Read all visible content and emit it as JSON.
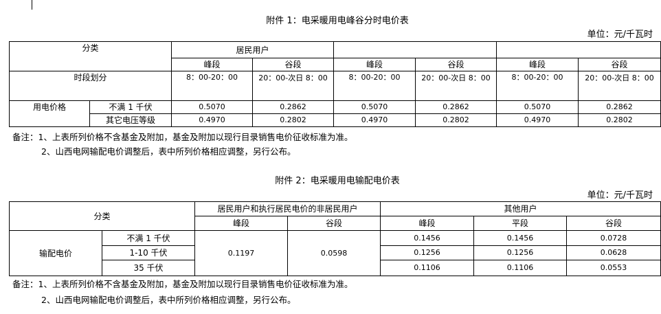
{
  "table1": {
    "title": "附件 1：电采暖用电峰谷分时电价表",
    "unit": "单位：元/千瓦时",
    "category": "分类",
    "group_headers": [
      "居民用户",
      "",
      ""
    ],
    "sub_headers": [
      "峰段",
      "谷段",
      "峰段",
      "谷段",
      "峰段",
      "谷段"
    ],
    "period_label": "时段划分",
    "periods": [
      "8：00-20：00",
      "20：00-次日 8：00",
      "8：00-20：00",
      "20：00-次日 8：00",
      "8：00-20：00",
      "20：00-次日 8：00"
    ],
    "price_label": "用电价格",
    "rows": [
      {
        "label": "不满 1 千伏",
        "values": [
          "0.5070",
          "0.2862",
          "0.5070",
          "0.2862",
          "0.5070",
          "0.2862"
        ]
      },
      {
        "label": "其它电压等级",
        "values": [
          "0.4970",
          "0.2802",
          "0.4970",
          "0.2802",
          "0.4970",
          "0.2802"
        ]
      }
    ],
    "notes": [
      "备注：1、上表所列价格不含基金及附加，基金及附加以现行目录销售电价征收标准为准。",
      "2、山西电网输配电价调整后，表中所列价格相应调整，另行公布。"
    ]
  },
  "table2": {
    "title": "附件 2：电采暖用电输配电价表",
    "unit": "单位：元/千瓦时",
    "category": "分类",
    "group_headers": [
      "居民用户和执行居民电价的非居民用户",
      "其他用户"
    ],
    "sub_headers": [
      "峰段",
      "谷段",
      "峰段",
      "平段",
      "谷段"
    ],
    "price_label": "输配电价",
    "resident_values": [
      "0.1197",
      "0.0598"
    ],
    "rows": [
      {
        "label": "不满 1 千伏",
        "values": [
          "0.1456",
          "0.1456",
          "0.0728"
        ]
      },
      {
        "label": "1-10 千伏",
        "values": [
          "0.1256",
          "0.1256",
          "0.0628"
        ]
      },
      {
        "label": "35 千伏",
        "values": [
          "0.1106",
          "0.1106",
          "0.0553"
        ]
      }
    ],
    "notes": [
      "备注：1、上表所列价格不含基金及附加，基金及附加以现行目录销售电价征收标准为准。",
      "2、山西电网输配电价调整后，表中所列价格相应调整，另行公布。"
    ]
  }
}
